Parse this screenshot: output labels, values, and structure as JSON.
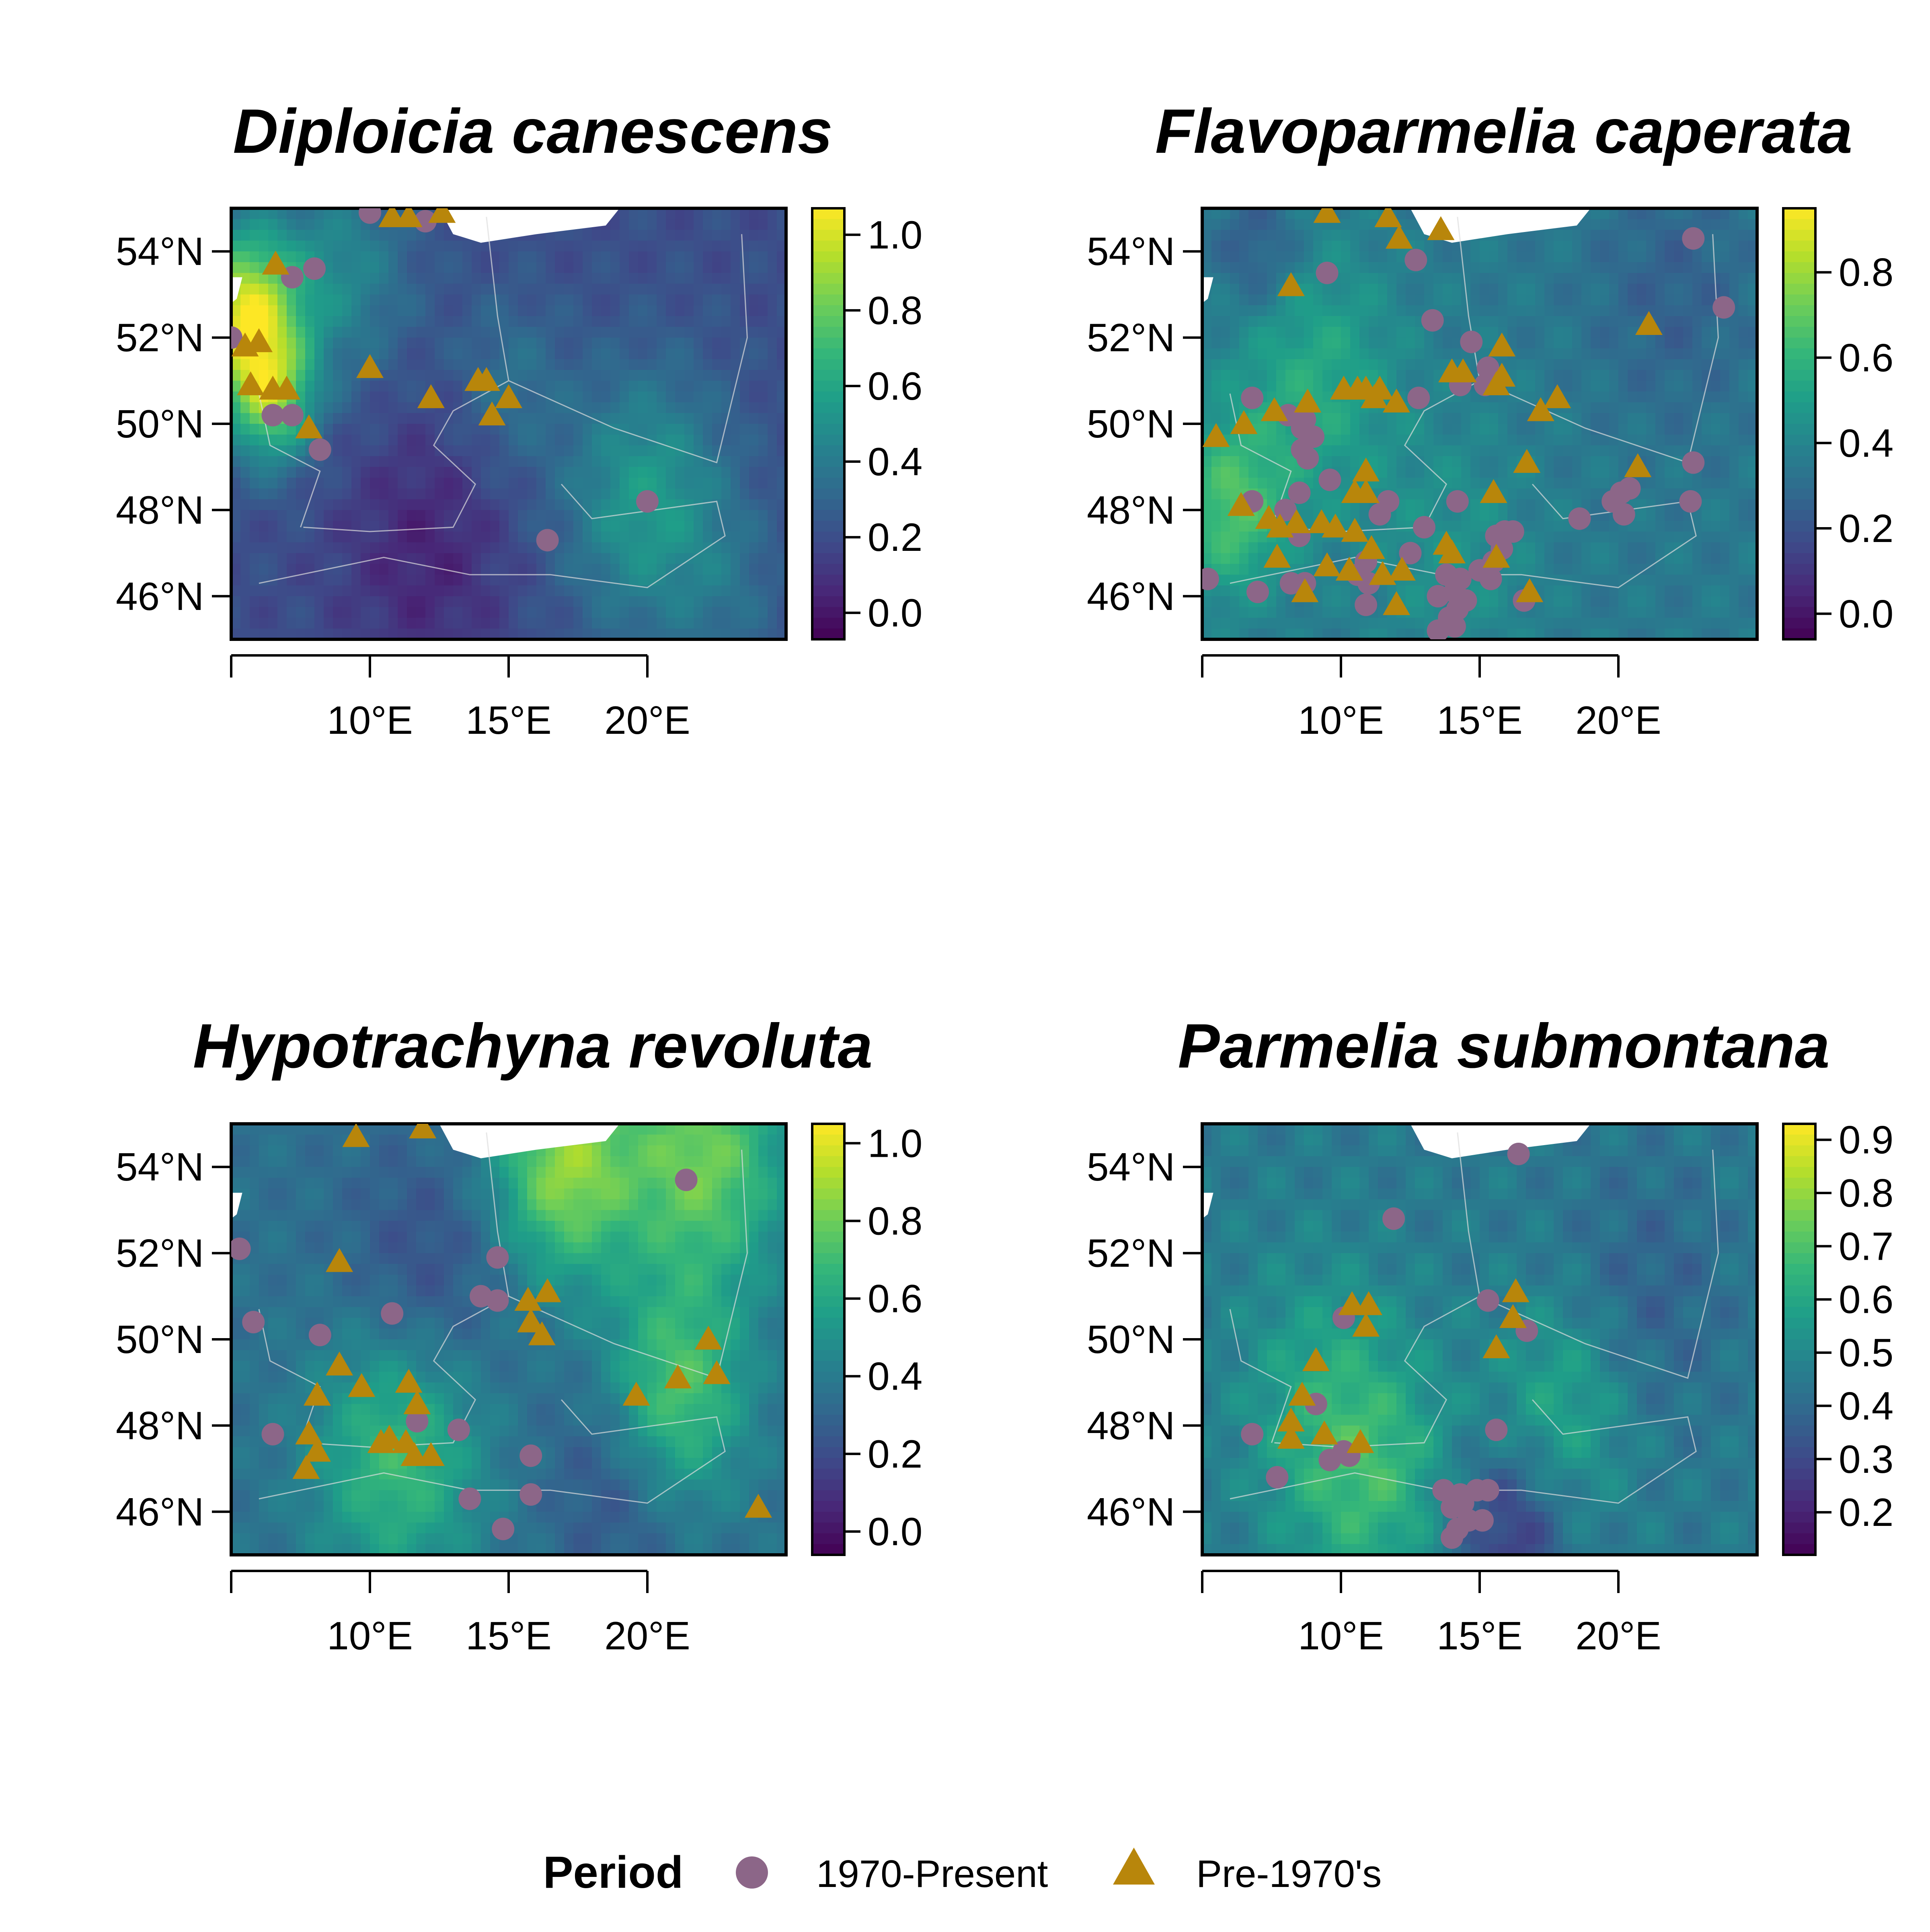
{
  "colors": {
    "present": "#8c6688",
    "pre": "#b8860b",
    "viridis": [
      "#440154",
      "#482878",
      "#3e4a89",
      "#31688e",
      "#26828e",
      "#1f9e89",
      "#35b779",
      "#6ece58",
      "#b5de2b",
      "#fde725"
    ]
  },
  "axes": {
    "x_ticks": [
      {
        "value": 10,
        "label": "10°E"
      },
      {
        "value": 15,
        "label": "15°E"
      },
      {
        "value": 20,
        "label": "20°E"
      }
    ],
    "y_ticks": [
      {
        "value": 54,
        "label": "54°N"
      },
      {
        "value": 52,
        "label": "52°N"
      },
      {
        "value": 50,
        "label": "50°N"
      },
      {
        "value": 48,
        "label": "48°N"
      },
      {
        "value": 46,
        "label": "46°N"
      }
    ],
    "xlim": [
      5,
      25
    ],
    "ylim": [
      45,
      55
    ]
  },
  "panels": [
    {
      "title": "Diploicia canescens",
      "colorbar": {
        "min": -0.07,
        "max": 1.07,
        "ticks": [
          {
            "value": 1.0,
            "label": "1.0"
          },
          {
            "value": 0.8,
            "label": "0.8"
          },
          {
            "value": 0.6,
            "label": "0.6"
          },
          {
            "value": 0.4,
            "label": "0.4"
          },
          {
            "value": 0.2,
            "label": "0.2"
          },
          {
            "value": 0.0,
            "label": "0.0"
          }
        ]
      },
      "field": {
        "base": 0.2,
        "blobs": [
          [
            5.5,
            52.5,
            2.0,
            0.8
          ],
          [
            6.5,
            50.5,
            1.5,
            0.5
          ],
          [
            9,
            53.5,
            2.5,
            0.25
          ],
          [
            20,
            48.2,
            3,
            0.35
          ],
          [
            15,
            51,
            2,
            0.15
          ],
          [
            23,
            46,
            2,
            0.1
          ],
          [
            12,
            47,
            3,
            -0.15
          ]
        ]
      },
      "present": [
        [
          10,
          54.9
        ],
        [
          12,
          54.7
        ],
        [
          7.2,
          53.4
        ],
        [
          8,
          53.6
        ],
        [
          5,
          52
        ],
        [
          6.5,
          50.2
        ],
        [
          7.2,
          50.2
        ],
        [
          8.2,
          49.4
        ],
        [
          16.4,
          47.3
        ],
        [
          20,
          48.2
        ]
      ],
      "pre": [
        [
          10.8,
          54.8
        ],
        [
          11.4,
          54.8
        ],
        [
          12.6,
          54.9
        ],
        [
          6.6,
          53.7
        ],
        [
          5.5,
          51.8
        ],
        [
          6,
          51.9
        ],
        [
          5.7,
          50.9
        ],
        [
          6.5,
          50.8
        ],
        [
          7,
          50.8
        ],
        [
          10,
          51.3
        ],
        [
          12.2,
          50.6
        ],
        [
          13.9,
          51
        ],
        [
          14.2,
          51
        ],
        [
          15,
          50.6
        ],
        [
          14.4,
          50.2
        ],
        [
          7.8,
          49.9
        ]
      ]
    },
    {
      "title": "Flavoparmelia caperata",
      "colorbar": {
        "min": -0.06,
        "max": 0.95,
        "ticks": [
          {
            "value": 0.8,
            "label": "0.8"
          },
          {
            "value": 0.6,
            "label": "0.6"
          },
          {
            "value": 0.4,
            "label": "0.4"
          },
          {
            "value": 0.2,
            "label": "0.2"
          },
          {
            "value": 0.0,
            "label": "0.0"
          }
        ]
      },
      "field": {
        "base": 0.35,
        "blobs": [
          [
            6,
            48,
            2,
            0.3
          ],
          [
            9,
            51,
            3,
            0.2
          ],
          [
            14,
            47,
            3,
            0.1
          ],
          [
            22,
            53,
            3,
            -0.1
          ],
          [
            7,
            54,
            1.5,
            -0.15
          ]
        ]
      },
      "present": [
        [
          9.5,
          53.5
        ],
        [
          12.7,
          53.8
        ],
        [
          13.3,
          52.4
        ],
        [
          14.7,
          51.9
        ],
        [
          15.3,
          51.3
        ],
        [
          15.2,
          50.9
        ],
        [
          14.3,
          50.9
        ],
        [
          12.8,
          50.6
        ],
        [
          6.8,
          50.6
        ],
        [
          8.1,
          50.2
        ],
        [
          8.7,
          50.1
        ],
        [
          8.6,
          49.9
        ],
        [
          9,
          49.7
        ],
        [
          8.6,
          49.4
        ],
        [
          8.8,
          49.2
        ],
        [
          9.6,
          48.7
        ],
        [
          8.5,
          48.4
        ],
        [
          6.8,
          48.2
        ],
        [
          8,
          48
        ],
        [
          8.5,
          47.4
        ],
        [
          11.4,
          47.9
        ],
        [
          11.7,
          48.2
        ],
        [
          13,
          47.6
        ],
        [
          14.2,
          48.2
        ],
        [
          12.5,
          47
        ],
        [
          10.9,
          46.8
        ],
        [
          10.6,
          46.5
        ],
        [
          11,
          46.3
        ],
        [
          8.2,
          46.3
        ],
        [
          8.7,
          46.3
        ],
        [
          7,
          46.1
        ],
        [
          10.9,
          45.8
        ],
        [
          5.2,
          46.4
        ],
        [
          13.8,
          46.5
        ],
        [
          14.3,
          46.4
        ],
        [
          14.1,
          46.1
        ],
        [
          13.5,
          46
        ],
        [
          14.5,
          45.9
        ],
        [
          14.2,
          45.7
        ],
        [
          13.9,
          45.5
        ],
        [
          14.1,
          45.3
        ],
        [
          13.5,
          45.2
        ],
        [
          15,
          46.6
        ],
        [
          15.5,
          46.8
        ],
        [
          15.8,
          47.1
        ],
        [
          15.6,
          47.4
        ],
        [
          15.9,
          47.5
        ],
        [
          16.2,
          47.5
        ],
        [
          15.4,
          46.4
        ],
        [
          16.6,
          45.9
        ],
        [
          18.6,
          47.8
        ],
        [
          19.8,
          48.2
        ],
        [
          20.1,
          48.4
        ],
        [
          20.4,
          48.5
        ],
        [
          20.2,
          47.9
        ],
        [
          22.7,
          49.1
        ],
        [
          22.6,
          48.2
        ],
        [
          22.7,
          54.3
        ],
        [
          23.8,
          52.7
        ]
      ],
      "pre": [
        [
          9.5,
          54.9
        ],
        [
          11.7,
          54.8
        ],
        [
          12.1,
          54.3
        ],
        [
          13.6,
          54.5
        ],
        [
          8.2,
          53.2
        ],
        [
          15.8,
          51.8
        ],
        [
          14,
          51.2
        ],
        [
          14.4,
          51.2
        ],
        [
          15.8,
          51.1
        ],
        [
          15.6,
          50.9
        ],
        [
          10.1,
          50.8
        ],
        [
          10.6,
          50.8
        ],
        [
          10.9,
          50.8
        ],
        [
          11.4,
          50.8
        ],
        [
          11.2,
          50.6
        ],
        [
          12,
          50.5
        ],
        [
          17.2,
          50.3
        ],
        [
          17.8,
          50.6
        ],
        [
          6.5,
          50
        ],
        [
          7.6,
          50.3
        ],
        [
          5.5,
          49.7
        ],
        [
          8.8,
          50.5
        ],
        [
          16.7,
          49.1
        ],
        [
          20.7,
          49
        ],
        [
          21.1,
          52.3
        ],
        [
          10.9,
          48.9
        ],
        [
          10.5,
          48.4
        ],
        [
          10.9,
          48.4
        ],
        [
          15.5,
          48.4
        ],
        [
          6.4,
          48.1
        ],
        [
          7.4,
          47.8
        ],
        [
          7.8,
          47.6
        ],
        [
          8.4,
          47.7
        ],
        [
          9.3,
          47.7
        ],
        [
          9.8,
          47.6
        ],
        [
          10.5,
          47.5
        ],
        [
          11.1,
          47.1
        ],
        [
          12.2,
          46.6
        ],
        [
          10.3,
          46.6
        ],
        [
          7.7,
          46.9
        ],
        [
          8.7,
          46.1
        ],
        [
          9.5,
          46.7
        ],
        [
          11.5,
          46.5
        ],
        [
          12,
          45.8
        ],
        [
          13.8,
          47.2
        ],
        [
          14,
          47
        ],
        [
          15.6,
          46.9
        ],
        [
          16.8,
          46.1
        ]
      ]
    },
    {
      "title": "Hypotrachyna revoluta",
      "colorbar": {
        "min": -0.06,
        "max": 1.05,
        "ticks": [
          {
            "value": 1.0,
            "label": "1.0"
          },
          {
            "value": 0.8,
            "label": "0.8"
          },
          {
            "value": 0.6,
            "label": "0.6"
          },
          {
            "value": 0.4,
            "label": "0.4"
          },
          {
            "value": 0.2,
            "label": "0.2"
          },
          {
            "value": 0.0,
            "label": "0.0"
          }
        ]
      },
      "field": {
        "base": 0.35,
        "blobs": [
          [
            17,
            54,
            2.5,
            0.5
          ],
          [
            22,
            54.2,
            3,
            0.45
          ],
          [
            11,
            47.3,
            3,
            0.35
          ],
          [
            21,
            48.7,
            2.5,
            0.4
          ],
          [
            19,
            46.8,
            2.5,
            -0.15
          ],
          [
            12,
            51.5,
            3,
            -0.15
          ]
        ]
      },
      "present": [
        [
          5.3,
          52.1
        ],
        [
          5.8,
          50.4
        ],
        [
          8.2,
          50.1
        ],
        [
          10.8,
          50.6
        ],
        [
          14,
          51
        ],
        [
          14.6,
          50.9
        ],
        [
          14.6,
          51.9
        ],
        [
          11.7,
          48.1
        ],
        [
          13.2,
          47.9
        ],
        [
          6.5,
          47.8
        ],
        [
          15.8,
          47.3
        ],
        [
          13.6,
          46.3
        ],
        [
          15.8,
          46.4
        ],
        [
          14.8,
          45.6
        ],
        [
          21.4,
          53.7
        ]
      ],
      "pre": [
        [
          9.5,
          54.7
        ],
        [
          11.9,
          54.9
        ],
        [
          8.9,
          51.8
        ],
        [
          15.7,
          50.9
        ],
        [
          16.4,
          51.1
        ],
        [
          15.8,
          50.4
        ],
        [
          16.2,
          50.1
        ],
        [
          8.9,
          49.4
        ],
        [
          7.8,
          47.8
        ],
        [
          8.1,
          47.4
        ],
        [
          9.7,
          48.9
        ],
        [
          11.4,
          49
        ],
        [
          11.7,
          48.5
        ],
        [
          11.3,
          47.6
        ],
        [
          10.4,
          47.6
        ],
        [
          10.7,
          47.7
        ],
        [
          11.6,
          47.3
        ],
        [
          12.2,
          47.3
        ],
        [
          7.7,
          47
        ],
        [
          8.1,
          48.7
        ],
        [
          19.6,
          48.7
        ],
        [
          21.1,
          49.1
        ],
        [
          22.5,
          49.2
        ],
        [
          22.2,
          50
        ],
        [
          24,
          46.1
        ]
      ]
    },
    {
      "title": "Parmelia submontana",
      "colorbar": {
        "min": 0.12,
        "max": 0.93,
        "ticks": [
          {
            "value": 0.9,
            "label": "0.9"
          },
          {
            "value": 0.8,
            "label": "0.8"
          },
          {
            "value": 0.7,
            "label": "0.7"
          },
          {
            "value": 0.6,
            "label": "0.6"
          },
          {
            "value": 0.5,
            "label": "0.5"
          },
          {
            "value": 0.4,
            "label": "0.4"
          },
          {
            "value": 0.3,
            "label": "0.3"
          },
          {
            "value": 0.2,
            "label": "0.2"
          }
        ]
      },
      "field": {
        "base": 0.45,
        "blobs": [
          [
            11,
            46.8,
            3,
            0.2
          ],
          [
            18,
            48.5,
            2.5,
            0.15
          ],
          [
            9,
            49,
            3,
            0.1
          ],
          [
            16,
            45.5,
            2,
            -0.2
          ],
          [
            21,
            51,
            3,
            -0.08
          ]
        ]
      },
      "present": [
        [
          11.9,
          52.8
        ],
        [
          16.4,
          54.3
        ],
        [
          10.1,
          50.5
        ],
        [
          15.3,
          50.9
        ],
        [
          16.7,
          50.2
        ],
        [
          9.1,
          48.5
        ],
        [
          6.8,
          47.8
        ],
        [
          7.7,
          46.8
        ],
        [
          9.6,
          47.2
        ],
        [
          10.1,
          47.4
        ],
        [
          10.3,
          47.3
        ],
        [
          15.6,
          47.9
        ],
        [
          13.7,
          46.5
        ],
        [
          14.3,
          46.4
        ],
        [
          14.9,
          46.5
        ],
        [
          15.3,
          46.5
        ],
        [
          14,
          46.1
        ],
        [
          14.4,
          46.2
        ],
        [
          14.6,
          45.8
        ],
        [
          14.2,
          45.6
        ],
        [
          14,
          45.4
        ],
        [
          15.1,
          45.8
        ]
      ],
      "pre": [
        [
          10.4,
          50.8
        ],
        [
          11,
          50.8
        ],
        [
          10.9,
          50.3
        ],
        [
          16.3,
          51.1
        ],
        [
          16.2,
          50.5
        ],
        [
          15.6,
          49.8
        ],
        [
          9.1,
          49.5
        ],
        [
          8.6,
          48.7
        ],
        [
          8.2,
          48.1
        ],
        [
          8.2,
          47.7
        ],
        [
          9.4,
          47.8
        ],
        [
          10.7,
          47.6
        ]
      ]
    }
  ],
  "legend": {
    "title": "Period",
    "items": [
      {
        "label": "1970-Present",
        "shape": "circle"
      },
      {
        "label": "Pre-1970's",
        "shape": "triangle"
      }
    ]
  }
}
